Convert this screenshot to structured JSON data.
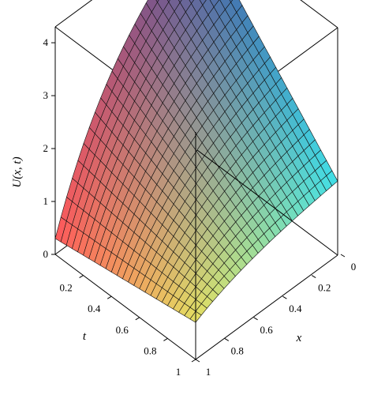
{
  "chart_data": {
    "type": "surface3d",
    "title": "",
    "zlabel": "U(x, t)",
    "xlabel": "x",
    "tlabel": "t",
    "x_range": [
      0,
      1
    ],
    "t_range": [
      0,
      1
    ],
    "z_range": [
      0,
      4.3
    ],
    "z_ticks": [
      "0",
      "1",
      "2",
      "3",
      "4"
    ],
    "t_ticks": [
      "0.2",
      "0.4",
      "0.6",
      "0.8",
      "1"
    ],
    "x_ticks": [
      "0",
      "0.2",
      "0.4",
      "0.6",
      "0.8",
      "1"
    ],
    "grid_resolution": 25,
    "surface_samples": {
      "note_axes": "U at grid points (x, t)",
      "points": [
        {
          "x": 0,
          "t": 0,
          "U": 0.3
        },
        {
          "x": 1,
          "t": 0,
          "U": 4.2
        },
        {
          "x": 0,
          "t": 1,
          "U": 0.7
        },
        {
          "x": 1,
          "t": 1,
          "U": 1.0
        },
        {
          "x": 0.5,
          "t": 0.5,
          "U": 1.8
        }
      ]
    },
    "colormap": [
      "#ff5a5a",
      "#e6e060",
      "#40e0e8",
      "#4050a0"
    ]
  }
}
